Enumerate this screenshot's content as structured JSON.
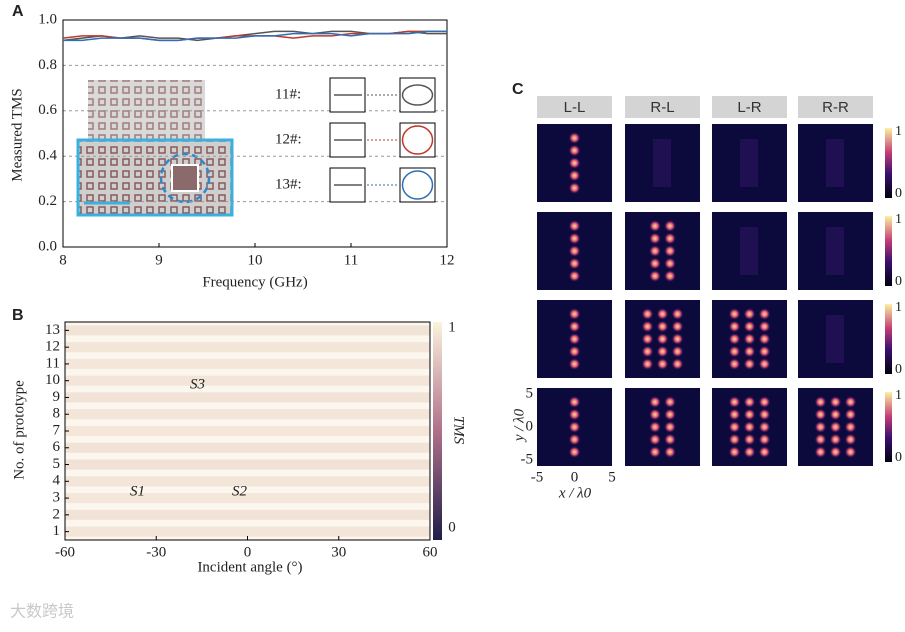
{
  "watermark": "大数跨境",
  "chart_data": [
    {
      "type": "line",
      "label": "A",
      "xlabel": "Frequency (GHz)",
      "ylabel": "Measured TMS",
      "x": [
        8,
        8.2,
        8.4,
        8.6,
        8.8,
        9,
        9.2,
        9.4,
        9.6,
        9.8,
        10,
        10.2,
        10.4,
        10.6,
        10.8,
        11,
        11.2,
        11.4,
        11.6,
        11.8,
        12
      ],
      "series": [
        {
          "name": "11#:",
          "color": "#555555",
          "values": [
            0.91,
            0.92,
            0.93,
            0.92,
            0.93,
            0.92,
            0.92,
            0.91,
            0.92,
            0.93,
            0.94,
            0.95,
            0.95,
            0.94,
            0.95,
            0.95,
            0.94,
            0.94,
            0.95,
            0.94,
            0.94
          ]
        },
        {
          "name": "12#:",
          "color": "#c0392b",
          "values": [
            0.92,
            0.93,
            0.93,
            0.92,
            0.92,
            0.91,
            0.91,
            0.92,
            0.92,
            0.93,
            0.93,
            0.93,
            0.92,
            0.93,
            0.93,
            0.94,
            0.94,
            0.94,
            0.95,
            0.95,
            0.95
          ]
        },
        {
          "name": "13#:",
          "color": "#2e6fb5",
          "values": [
            0.91,
            0.91,
            0.92,
            0.92,
            0.92,
            0.91,
            0.91,
            0.92,
            0.92,
            0.92,
            0.93,
            0.93,
            0.94,
            0.94,
            0.94,
            0.93,
            0.94,
            0.94,
            0.94,
            0.95,
            0.95
          ]
        }
      ],
      "xlim": [
        8,
        12
      ],
      "xticks": [
        8,
        9,
        10,
        11,
        12
      ],
      "ylim": [
        0,
        1
      ],
      "yticks": [
        {
          "value": 0,
          "label": "0.0"
        },
        {
          "value": 0.2,
          "label": "0.2"
        },
        {
          "value": 0.4,
          "label": "0.4"
        },
        {
          "value": 0.6,
          "label": "0.6"
        },
        {
          "value": 0.8,
          "label": "0.8"
        },
        {
          "value": 1,
          "label": "1.0"
        }
      ],
      "grid": true
    },
    {
      "type": "heatmap",
      "label": "B",
      "xlabel": "Incident angle (°)",
      "ylabel": "No. of prototype",
      "colorbar_label": "TMS",
      "rows": [
        1,
        2,
        3,
        4,
        5,
        6,
        7,
        8,
        9,
        10,
        11,
        12,
        13
      ],
      "values": [
        0.92,
        0.91,
        0.93,
        0.92,
        0.9,
        0.91,
        0.93,
        0.92,
        0.91,
        0.92,
        0.93,
        0.92,
        0.91
      ],
      "xlim": [
        -60,
        60
      ],
      "xticks": [
        -60,
        -30,
        0,
        30,
        60
      ],
      "ylim": [
        0.5,
        13.5
      ],
      "yticks": [
        1,
        2,
        3,
        4,
        5,
        6,
        7,
        8,
        9,
        10,
        11,
        12,
        13
      ],
      "clim": [
        0,
        1
      ],
      "cticks": [
        0,
        1
      ],
      "sphere_axes": [
        "S3",
        "S1",
        "S2"
      ]
    },
    {
      "type": "image_grid",
      "label": "C",
      "columns": [
        "L-L",
        "R-L",
        "L-R",
        "R-R"
      ],
      "xlabel": "x / λ0",
      "ylabel": "y / λ0",
      "xticks": [
        -5,
        0,
        5
      ],
      "yticks": [
        -5,
        0,
        5
      ],
      "xlim": [
        -5,
        5
      ],
      "ylim": [
        -5,
        5
      ],
      "cticks": [
        0,
        1
      ]
    }
  ]
}
